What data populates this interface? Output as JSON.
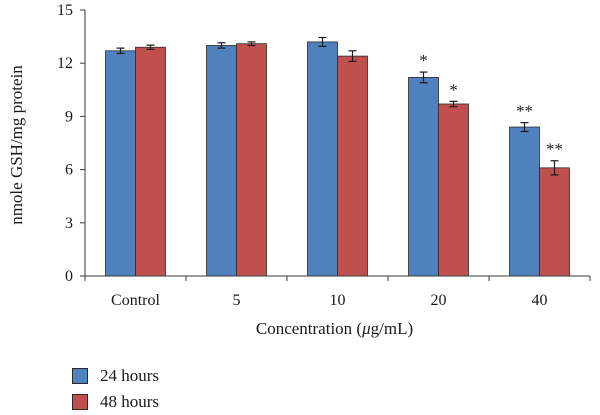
{
  "chart_data": {
    "type": "bar",
    "categories": [
      "Control",
      "5",
      "10",
      "20",
      "40"
    ],
    "series": [
      {
        "name": "24 hours",
        "color": "#4f81bd",
        "values": [
          12.7,
          13.0,
          13.2,
          11.2,
          8.4
        ],
        "errors": [
          0.15,
          0.15,
          0.25,
          0.3,
          0.25
        ],
        "annotations": [
          "",
          "",
          "",
          "*",
          "**"
        ]
      },
      {
        "name": "48 hours",
        "color": "#c0504d",
        "values": [
          12.9,
          13.1,
          12.4,
          9.7,
          6.1
        ],
        "errors": [
          0.12,
          0.1,
          0.3,
          0.15,
          0.4
        ],
        "annotations": [
          "",
          "",
          "",
          "*",
          "**"
        ]
      }
    ],
    "ylabel": "nmole GSH/mg protein",
    "xlabel": "Concentration (μg/mL)",
    "ylim": [
      0,
      15
    ],
    "yticks": [
      0,
      3,
      6,
      9,
      12,
      15
    ],
    "grid": false,
    "legend_position": "bottom-left"
  }
}
